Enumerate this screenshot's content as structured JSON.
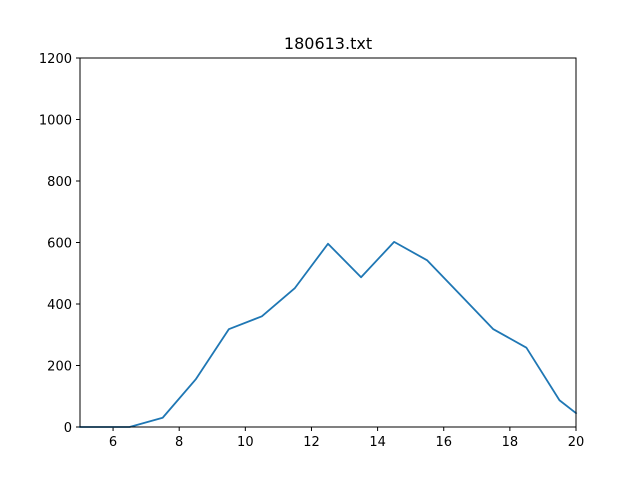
{
  "chart_data": {
    "type": "line",
    "title": "180613.txt",
    "xlabel": "",
    "ylabel": "",
    "xlim": [
      5,
      20
    ],
    "ylim": [
      0,
      1200
    ],
    "x_ticks": [
      6,
      8,
      10,
      12,
      14,
      16,
      18,
      20
    ],
    "y_ticks": [
      0,
      200,
      400,
      600,
      800,
      1000,
      1200
    ],
    "grid": false,
    "series": [
      {
        "color": "#1f77b4",
        "x": [
          5,
          6,
          6.5,
          7.5,
          8.5,
          9.5,
          10.5,
          11.5,
          12.5,
          13.5,
          14.5,
          15.5,
          16.5,
          17.5,
          18.5,
          19.5,
          20
        ],
        "y": [
          0,
          0,
          0,
          30,
          155,
          318,
          360,
          452,
          596,
          487,
          602,
          542,
          430,
          318,
          258,
          87,
          45
        ]
      }
    ]
  }
}
